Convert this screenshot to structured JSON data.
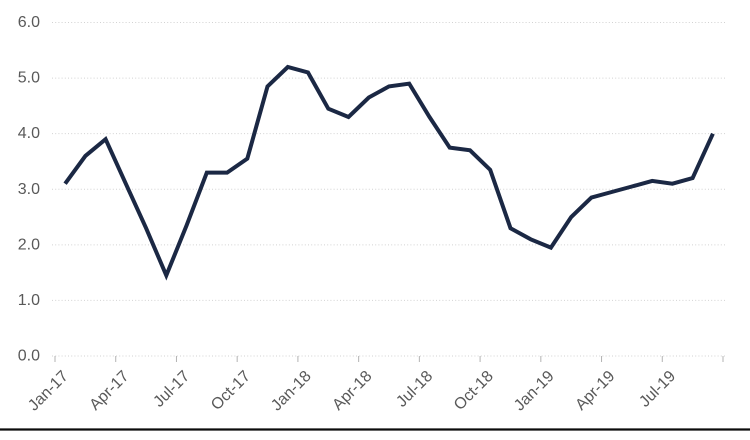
{
  "chart_data": {
    "type": "line",
    "title": "",
    "xlabel": "",
    "ylabel": "",
    "legend": "none",
    "grid": "horizontal-dotted",
    "ylim": [
      0,
      6
    ],
    "y_ticks": [
      0,
      1,
      2,
      3,
      4,
      5,
      6
    ],
    "y_tick_labels": [
      "0.0",
      "1.0",
      "2.0",
      "3.0",
      "4.0",
      "5.0",
      "6.0"
    ],
    "x": [
      "Jan-17",
      "Feb-17",
      "Mar-17",
      "Apr-17",
      "May-17",
      "Jun-17",
      "Jul-17",
      "Aug-17",
      "Sep-17",
      "Oct-17",
      "Nov-17",
      "Dec-17",
      "Jan-18",
      "Feb-18",
      "Mar-18",
      "Apr-18",
      "May-18",
      "Jun-18",
      "Jul-18",
      "Aug-18",
      "Sep-18",
      "Oct-18",
      "Nov-18",
      "Dec-18",
      "Jan-19",
      "Feb-19",
      "Mar-19",
      "Apr-19",
      "May-19",
      "Jun-19",
      "Jul-19",
      "Aug-19",
      "Sep-19"
    ],
    "x_tick_labels": [
      "Jan-17",
      "Apr-17",
      "Jul-17",
      "Oct-17",
      "Jan-18",
      "Apr-18",
      "Jul-18",
      "Oct-18",
      "Jan-19",
      "Apr-19",
      "Jul-19"
    ],
    "x_tick_interval_months": 3,
    "series": [
      {
        "name": "main-series",
        "values": [
          3.1,
          3.6,
          3.9,
          3.1,
          2.3,
          1.45,
          2.35,
          3.3,
          3.3,
          3.55,
          4.85,
          5.2,
          5.1,
          4.45,
          4.3,
          4.65,
          4.85,
          4.9,
          4.3,
          3.75,
          3.7,
          3.35,
          2.3,
          2.1,
          1.95,
          2.5,
          2.85,
          2.95,
          3.05,
          3.15,
          3.1,
          3.2,
          4.0
        ]
      }
    ],
    "colors": {
      "line": "#1b2844",
      "labels": "#595959",
      "gridline": "#d2d2d2",
      "tick_mark": "#b3b3b3",
      "bottom_rule": "#0c0c0c",
      "background": "#ffffff"
    }
  }
}
